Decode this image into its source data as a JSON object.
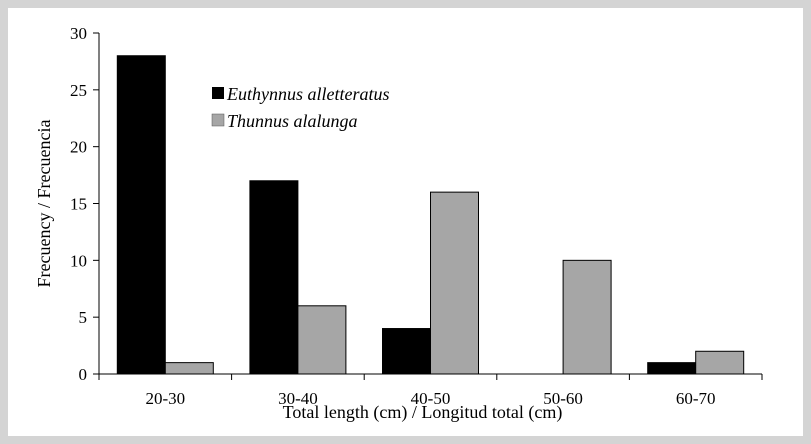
{
  "chart_data": {
    "type": "bar",
    "categories": [
      "20-30",
      "30-40",
      "40-50",
      "50-60",
      "60-70"
    ],
    "series": [
      {
        "name": "Euthynnus alletteratus",
        "values": [
          28,
          17,
          4,
          0,
          1
        ],
        "color": "#000000"
      },
      {
        "name": "Thunnus alalunga",
        "values": [
          1,
          6,
          16,
          10,
          2
        ],
        "color": "#a6a6a6"
      }
    ],
    "xlabel": "Total length (cm) / Longitud total (cm)",
    "ylabel": "Frecuency / Frecuencia",
    "ylim": [
      0,
      30
    ],
    "yticks": [
      0,
      5,
      10,
      15,
      20,
      25,
      30
    ],
    "grid": false,
    "legend": "top-left inside plot"
  }
}
